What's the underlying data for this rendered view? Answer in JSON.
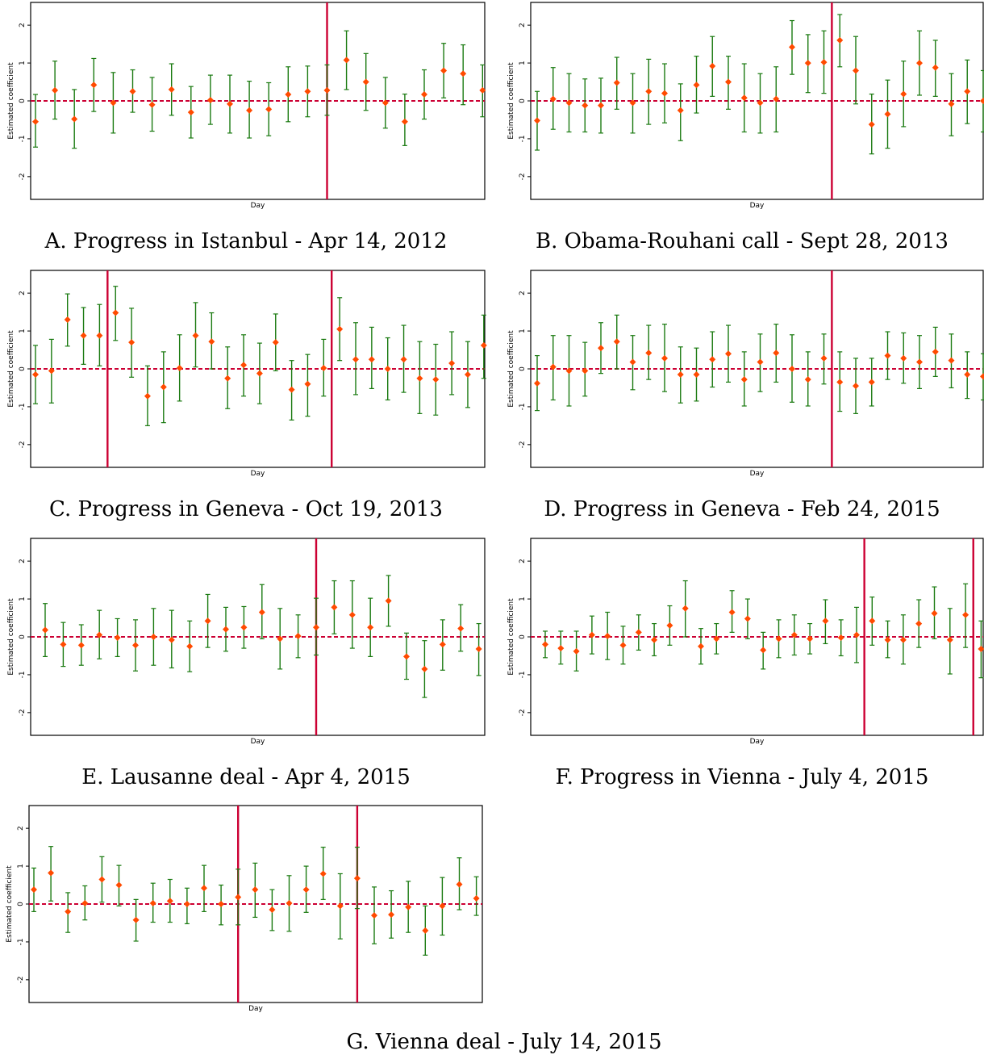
{
  "colors": {
    "point": "#ff4a00",
    "ci": "#1a7a10",
    "zero_line": "#cc0033",
    "event_line": "#cc0033"
  },
  "chart_data": [
    {
      "type": "scatter",
      "caption": "A. Progress in Istanbul - Apr 14, 2012",
      "xlabel": "Day",
      "ylabel": "Estimated coefficient",
      "ylim": [
        -2.6,
        2.6
      ],
      "yticks": [
        "2",
        "1",
        "0",
        "-1",
        "-2"
      ],
      "event_days": [
        15
      ],
      "estimates": [
        -0.55,
        0.28,
        -0.48,
        0.42,
        -0.05,
        0.25,
        -0.1,
        0.3,
        -0.3,
        0.02,
        -0.08,
        -0.25,
        -0.22,
        0.17,
        0.25,
        0.28,
        1.08,
        0.5,
        -0.05,
        -0.55,
        0.17,
        0.8,
        0.72,
        0.28
      ],
      "lower": [
        -1.22,
        -0.48,
        -1.25,
        -0.28,
        -0.85,
        -0.3,
        -0.8,
        -0.38,
        -0.98,
        -0.62,
        -0.85,
        -0.98,
        -0.92,
        -0.55,
        -0.42,
        -0.38,
        0.3,
        -0.25,
        -0.72,
        -1.18,
        -0.48,
        0.08,
        -0.1,
        -0.42
      ],
      "upper": [
        0.17,
        1.05,
        0.3,
        1.12,
        0.75,
        0.82,
        0.62,
        0.98,
        0.38,
        0.68,
        0.68,
        0.52,
        0.48,
        0.9,
        0.92,
        0.95,
        1.85,
        1.25,
        0.62,
        0.18,
        0.82,
        1.52,
        1.48,
        0.95
      ]
    },
    {
      "type": "scatter",
      "caption": "B. Obama-Rouhani call - Sept 28, 2013",
      "xlabel": "Day",
      "ylabel": "Estimated coefficient",
      "ylim": [
        -2.6,
        2.6
      ],
      "yticks": [
        "2",
        "1",
        "0",
        "-1",
        "-2"
      ],
      "event_days": [
        18.5
      ],
      "estimates": [
        -0.52,
        0.05,
        -0.05,
        -0.12,
        -0.12,
        0.48,
        -0.05,
        0.25,
        0.2,
        -0.25,
        0.42,
        0.92,
        0.5,
        0.08,
        -0.05,
        0.05,
        1.42,
        1.0,
        1.02,
        1.6,
        0.8,
        -0.62,
        -0.35,
        0.18,
        1.0,
        0.88,
        -0.08,
        0.25,
        0.0
      ],
      "lower": [
        -1.3,
        -0.75,
        -0.82,
        -0.82,
        -0.85,
        -0.22,
        -0.85,
        -0.62,
        -0.58,
        -1.05,
        -0.32,
        0.12,
        -0.22,
        -0.82,
        -0.85,
        -0.82,
        0.7,
        0.22,
        0.2,
        0.9,
        -0.08,
        -1.4,
        -1.25,
        -0.68,
        0.15,
        0.12,
        -0.92,
        -0.6,
        -0.82
      ],
      "upper": [
        0.25,
        0.88,
        0.72,
        0.58,
        0.6,
        1.15,
        0.72,
        1.1,
        0.98,
        0.45,
        1.18,
        1.7,
        1.18,
        0.98,
        0.72,
        0.9,
        2.12,
        1.75,
        1.85,
        2.28,
        1.7,
        0.18,
        0.55,
        1.05,
        1.85,
        1.6,
        0.72,
        1.08,
        0.8
      ]
    },
    {
      "type": "scatter",
      "caption": "C. Progress in Geneva - Oct 19, 2013",
      "xlabel": "Day",
      "ylabel": "Estimated coefficient",
      "ylim": [
        -2.6,
        2.6
      ],
      "yticks": [
        "2",
        "1",
        "0",
        "-1",
        "-2"
      ],
      "event_days": [
        4.5,
        18.5
      ],
      "estimates": [
        -0.15,
        -0.05,
        1.3,
        0.88,
        0.88,
        1.48,
        0.7,
        -0.72,
        -0.48,
        0.02,
        0.88,
        0.72,
        -0.25,
        0.1,
        -0.12,
        0.7,
        -0.55,
        -0.4,
        0.02,
        1.05,
        0.25,
        0.25,
        0.0,
        0.25,
        -0.25,
        -0.28,
        0.15,
        -0.15,
        0.62
      ],
      "lower": [
        -0.92,
        -0.9,
        0.6,
        0.12,
        0.08,
        0.75,
        -0.22,
        -1.5,
        -1.42,
        -0.85,
        0.05,
        0.0,
        -1.05,
        -0.72,
        -0.92,
        -0.05,
        -1.35,
        -1.25,
        -0.72,
        0.22,
        -0.68,
        -0.52,
        -0.82,
        -0.62,
        -1.18,
        -1.22,
        -0.68,
        -1.02,
        -0.25
      ],
      "upper": [
        0.62,
        0.78,
        1.98,
        1.62,
        1.7,
        2.18,
        1.6,
        0.08,
        0.45,
        0.9,
        1.75,
        1.48,
        0.58,
        0.9,
        0.68,
        1.45,
        0.22,
        0.38,
        0.78,
        1.88,
        1.22,
        1.1,
        0.82,
        1.15,
        0.72,
        0.65,
        0.98,
        0.72,
        1.42
      ]
    },
    {
      "type": "scatter",
      "caption": "D. Progress in Geneva - Feb 24, 2015",
      "xlabel": "Day",
      "ylabel": "Estimated coefficient",
      "ylim": [
        -2.6,
        2.6
      ],
      "yticks": [
        "2",
        "1",
        "0",
        "-1",
        "-2"
      ],
      "event_days": [
        18.5
      ],
      "estimates": [
        -0.38,
        0.05,
        -0.05,
        -0.05,
        0.55,
        0.72,
        0.18,
        0.42,
        0.28,
        -0.15,
        -0.15,
        0.25,
        0.4,
        -0.28,
        0.18,
        0.42,
        0.0,
        -0.28,
        0.28,
        -0.35,
        -0.45,
        -0.35,
        0.35,
        0.28,
        0.18,
        0.45,
        0.22,
        -0.15,
        -0.2
      ],
      "lower": [
        -1.1,
        -0.82,
        -0.98,
        -0.72,
        -0.12,
        0.0,
        -0.55,
        -0.28,
        -0.6,
        -0.9,
        -0.85,
        -0.48,
        -0.35,
        -0.98,
        -0.6,
        -0.35,
        -0.88,
        -0.98,
        -0.4,
        -1.12,
        -1.18,
        -0.98,
        -0.28,
        -0.38,
        -0.52,
        -0.2,
        -0.5,
        -0.78,
        -0.82
      ],
      "upper": [
        0.35,
        0.88,
        0.88,
        0.7,
        1.22,
        1.42,
        0.88,
        1.15,
        1.18,
        0.58,
        0.55,
        0.98,
        1.15,
        0.45,
        0.92,
        1.18,
        0.9,
        0.45,
        0.92,
        0.45,
        0.28,
        0.28,
        0.98,
        0.95,
        0.88,
        1.1,
        0.92,
        0.45,
        0.4
      ]
    },
    {
      "type": "scatter",
      "caption": "E. Lausanne deal - Apr 4, 2015",
      "xlabel": "Day",
      "ylabel": "Estimated coefficient",
      "ylim": [
        -2.6,
        2.6
      ],
      "yticks": [
        "2",
        "1",
        "0",
        "-1",
        "-2"
      ],
      "event_days": [
        15
      ],
      "estimates": [
        0.18,
        -0.2,
        -0.22,
        0.05,
        -0.02,
        -0.22,
        0.0,
        -0.08,
        -0.25,
        0.42,
        0.2,
        0.25,
        0.65,
        -0.05,
        0.02,
        0.25,
        0.78,
        0.58,
        0.25,
        0.95,
        -0.52,
        -0.85,
        -0.2,
        0.22,
        -0.32
      ],
      "lower": [
        -0.52,
        -0.78,
        -0.75,
        -0.58,
        -0.52,
        -0.9,
        -0.75,
        -0.82,
        -0.92,
        -0.28,
        -0.38,
        -0.3,
        -0.05,
        -0.85,
        -0.55,
        -0.48,
        0.08,
        -0.3,
        -0.52,
        0.28,
        -1.12,
        -1.6,
        -0.88,
        -0.38,
        -1.02
      ],
      "upper": [
        0.88,
        0.38,
        0.32,
        0.7,
        0.48,
        0.45,
        0.75,
        0.7,
        0.42,
        1.12,
        0.78,
        0.8,
        1.38,
        0.75,
        0.58,
        1.02,
        1.48,
        1.48,
        1.02,
        1.62,
        0.1,
        -0.1,
        0.45,
        0.85,
        0.35
      ]
    },
    {
      "type": "scatter",
      "caption": "F. Progress in Vienna - July 4, 2015",
      "xlabel": "Day",
      "ylabel": "Estimated coefficient",
      "ylim": [
        -2.6,
        2.6
      ],
      "yticks": [
        "2",
        "1",
        "0",
        "-1",
        "-2"
      ],
      "event_days": [
        20.5,
        27.5
      ],
      "estimates": [
        -0.2,
        -0.3,
        -0.38,
        0.05,
        0.02,
        -0.22,
        0.12,
        -0.08,
        0.3,
        0.75,
        -0.25,
        -0.05,
        0.65,
        0.48,
        -0.35,
        -0.05,
        0.05,
        -0.05,
        0.42,
        -0.02,
        0.05,
        0.42,
        -0.08,
        -0.08,
        0.35,
        0.62,
        -0.08,
        0.58,
        -0.32
      ],
      "lower": [
        -0.55,
        -0.72,
        -0.9,
        -0.45,
        -0.6,
        -0.72,
        -0.35,
        -0.5,
        -0.22,
        0.0,
        -0.72,
        -0.45,
        0.12,
        -0.05,
        -0.85,
        -0.55,
        -0.48,
        -0.45,
        -0.18,
        -0.5,
        -0.68,
        -0.22,
        -0.55,
        -0.72,
        -0.28,
        -0.05,
        -0.98,
        -0.28,
        -1.08
      ],
      "upper": [
        0.15,
        0.15,
        0.15,
        0.55,
        0.65,
        0.28,
        0.58,
        0.35,
        0.82,
        1.48,
        0.22,
        0.35,
        1.22,
        1.0,
        0.12,
        0.45,
        0.58,
        0.35,
        0.98,
        0.45,
        0.78,
        1.05,
        0.42,
        0.58,
        0.98,
        1.32,
        0.75,
        1.4,
        0.42
      ]
    },
    {
      "type": "scatter",
      "caption": "G. Vienna deal - July 14, 2015",
      "xlabel": "Day",
      "ylabel": "Estimated coefficient",
      "ylim": [
        -2.6,
        2.6
      ],
      "yticks": [
        "2",
        "1",
        "0",
        "-1",
        "-2"
      ],
      "event_days": [
        12,
        19
      ],
      "estimates": [
        0.38,
        0.82,
        -0.2,
        0.02,
        0.65,
        0.5,
        -0.42,
        0.02,
        0.08,
        0.0,
        0.42,
        0.0,
        0.18,
        0.38,
        -0.15,
        0.02,
        0.38,
        0.8,
        -0.05,
        0.68,
        -0.3,
        -0.28,
        -0.08,
        -0.7,
        -0.05,
        0.52,
        0.15
      ],
      "lower": [
        -0.2,
        0.08,
        -0.75,
        -0.42,
        0.05,
        -0.05,
        -0.98,
        -0.48,
        -0.48,
        -0.52,
        -0.2,
        -0.55,
        -0.55,
        -0.35,
        -0.7,
        -0.72,
        -0.22,
        0.12,
        -0.92,
        -0.12,
        -1.05,
        -0.9,
        -0.75,
        -1.35,
        -0.82,
        -0.15,
        -0.3
      ],
      "upper": [
        0.95,
        1.52,
        0.3,
        0.48,
        1.25,
        1.02,
        0.12,
        0.55,
        0.65,
        0.42,
        1.02,
        0.5,
        0.92,
        1.08,
        0.38,
        0.75,
        1.0,
        1.5,
        0.8,
        1.5,
        0.45,
        0.35,
        0.6,
        -0.05,
        0.7,
        1.22,
        0.72
      ]
    }
  ]
}
